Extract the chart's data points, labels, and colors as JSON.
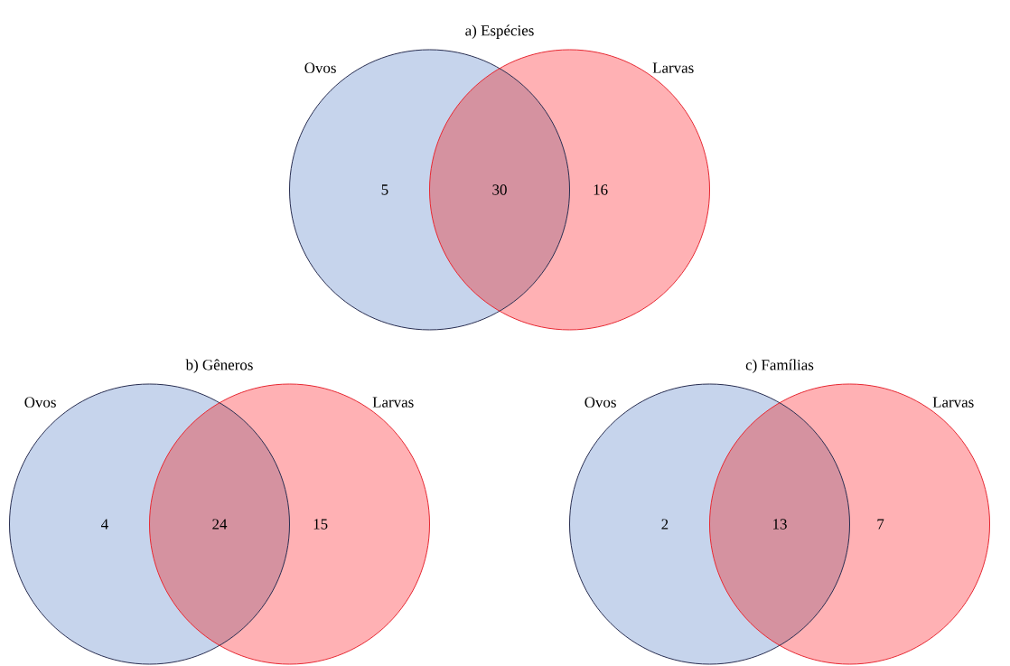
{
  "chart_data": [
    {
      "type": "other",
      "title": "a) Espécies",
      "annotations": [
        "Ovos",
        "Larvas"
      ],
      "categories": [
        null,
        null,
        null
      ],
      "values": [
        5,
        30,
        16
      ],
      "colors": [
        "#c6d4ec",
        "#d592a0",
        "#ffb1b4"
      ],
      "data_labels": true
    },
    {
      "type": "other",
      "title": "b) Gêneros",
      "annotations": [
        "Ovos",
        "Larvas"
      ],
      "categories": [
        null,
        null,
        null
      ],
      "values": [
        4,
        24,
        15
      ],
      "colors": [
        "#c6d4ec",
        "#d592a0",
        "#ffb1b4"
      ],
      "data_labels": true
    },
    {
      "type": "other",
      "title": "c) Famílias",
      "annotations": [
        "Ovos",
        "Larvas"
      ],
      "categories": [
        null,
        null,
        null
      ],
      "values": [
        2,
        13,
        7
      ],
      "colors": [
        "#c6d4ec",
        "#d592a0",
        "#ffb1b4"
      ],
      "data_labels": true
    }
  ]
}
